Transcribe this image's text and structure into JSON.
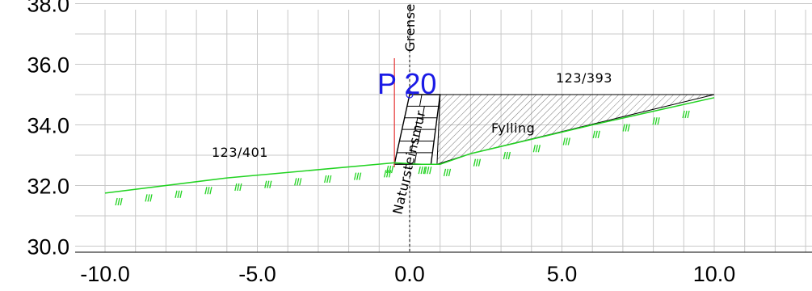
{
  "diagram": {
    "type": "cross-section",
    "x_ticks": [
      "-10.0",
      "-5.0",
      "0.0",
      "5.0",
      "10.0"
    ],
    "y_ticks": [
      "30.0",
      "32.0",
      "34.0",
      "36.0",
      "38.0"
    ],
    "labels": {
      "boundary": "Grense",
      "point": "P 20",
      "parcel_left": "123/401",
      "parcel_right": "123/393",
      "fill": "Fylling",
      "wall": "Natursteinsmur"
    },
    "terrain": [
      [
        -10.0,
        31.75
      ],
      [
        -6.0,
        32.25
      ],
      [
        -0.5,
        32.75
      ],
      [
        0.4,
        32.7
      ],
      [
        1.0,
        32.7
      ],
      [
        2.0,
        33.05
      ],
      [
        6.0,
        34.0
      ],
      [
        10.0,
        34.9
      ]
    ],
    "wall_outline": [
      [
        -0.5,
        32.7
      ],
      [
        0.0,
        35.0
      ],
      [
        1.0,
        35.0
      ],
      [
        0.7,
        32.7
      ]
    ],
    "fill_outline": [
      [
        0.9,
        32.7
      ],
      [
        1.0,
        35.0
      ],
      [
        10.0,
        35.0
      ],
      [
        2.0,
        33.05
      ]
    ],
    "boundary_line": {
      "x": -0.5,
      "y_from": 32.6,
      "y_to": 36.2
    },
    "point_marker": [
      0.0,
      35.0
    ],
    "colors": {
      "terrain": "#22d322",
      "boundary": "#e63232",
      "point": "#1a1ae6",
      "grid": "#c8c8c8"
    }
  }
}
